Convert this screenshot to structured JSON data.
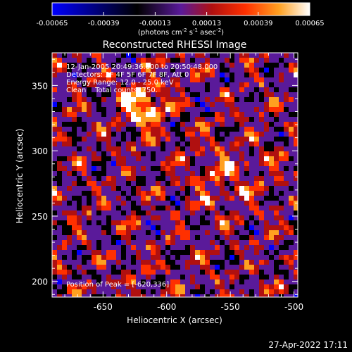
{
  "chart_data": {
    "type": "heatmap",
    "title": "Reconstructed RHESSI Image",
    "xlabel": "Heliocentric X (arcsec)",
    "ylabel": "Heliocentric Y (arcsec)",
    "xlim": [
      -690,
      -497
    ],
    "ylim": [
      188,
      375
    ],
    "xticks": [
      -650,
      -600,
      -550,
      -500
    ],
    "xtick_labels": [
      "-650",
      "-600",
      "-550",
      "-500"
    ],
    "yticks": [
      200,
      250,
      300,
      350
    ],
    "ytick_labels": [
      "200",
      "250",
      "300",
      "350"
    ],
    "colorbar": {
      "range": [
        -0.00065,
        0.00065
      ],
      "ticks": [
        -0.00065,
        -0.00039,
        -0.00013,
        0.00013,
        0.00039,
        0.00065
      ],
      "tick_labels": [
        "-0.00065",
        "-0.00039",
        "-0.00013",
        "0.00013",
        "0.00039",
        "0.00065"
      ],
      "unit_label": "(photons cm",
      "unit_exp1": "-2",
      "unit_mid": " s",
      "unit_exp2": "-1",
      "unit_mid2": " asec",
      "unit_exp3": "-2",
      "unit_end": ")",
      "colors": [
        "#0000ff",
        "#000000",
        "#5a1a9a",
        "#b01010",
        "#ff3000",
        "#ffa020",
        "#ffffff"
      ]
    },
    "annotations": {
      "line1": "12-Jan-2005 20:49:36.000 to 20:50:48.000",
      "line2": "Detectors: 3F 4F 5F 6F 7F 8F, Att 0",
      "line3": "Energy Range: 12.0 - 25.0 keV",
      "line4": "Clean    Total counts: 750.",
      "peak": "Position of Peak = [-620,336]"
    },
    "peak": [
      -620,
      336
    ]
  },
  "footer": {
    "timestamp": "27-Apr-2022 17:11"
  }
}
